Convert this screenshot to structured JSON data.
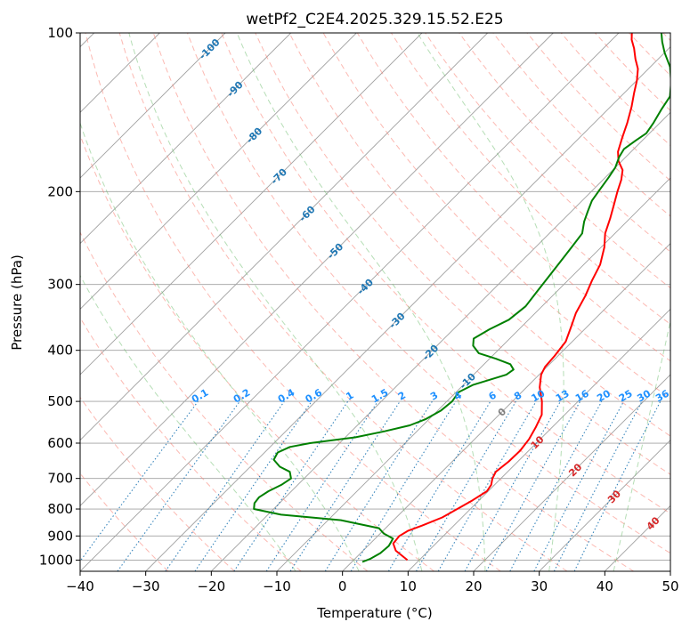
{
  "chart_data": {
    "type": "line",
    "title": "wetPf2_C2E4.2025.329.15.52.E25",
    "xlabel": "Temperature (°C)",
    "ylabel": "Pressure (hPa)",
    "xlim": [
      -40,
      50
    ],
    "ylim": [
      1050,
      100
    ],
    "y_scale": "log",
    "x_ticks": [
      -40,
      -30,
      -20,
      -10,
      0,
      10,
      20,
      30,
      40,
      50
    ],
    "y_ticks": [
      100,
      200,
      300,
      400,
      500,
      600,
      700,
      800,
      900,
      1000
    ],
    "grid": true,
    "series": [
      {
        "color": "#ff0000",
        "points": [
          [
            8.2,
            1000
          ],
          [
            5.0,
            960
          ],
          [
            3.5,
            930
          ],
          [
            3.3,
            900
          ],
          [
            3.8,
            880
          ],
          [
            5.2,
            860
          ],
          [
            7.0,
            830
          ],
          [
            8.0,
            800
          ],
          [
            9.0,
            770
          ],
          [
            9.8,
            740
          ],
          [
            9.5,
            720
          ],
          [
            8.7,
            700
          ],
          [
            8.2,
            680
          ],
          [
            8.6,
            650
          ],
          [
            8.7,
            620
          ],
          [
            8.3,
            590
          ],
          [
            7.5,
            560
          ],
          [
            6.5,
            530
          ],
          [
            4.5,
            500
          ],
          [
            2.0,
            470
          ],
          [
            0.3,
            445
          ],
          [
            -0.3,
            430
          ],
          [
            -0.5,
            410
          ],
          [
            -1.0,
            385
          ],
          [
            -2.5,
            360
          ],
          [
            -3.8,
            340
          ],
          [
            -5.0,
            315
          ],
          [
            -6.3,
            295
          ],
          [
            -7.5,
            275
          ],
          [
            -9.5,
            255
          ],
          [
            -11.5,
            240
          ],
          [
            -13.0,
            225
          ],
          [
            -14.5,
            212
          ],
          [
            -16.0,
            200
          ],
          [
            -17.2,
            190
          ],
          [
            -18.5,
            182
          ],
          [
            -20.5,
            175
          ],
          [
            -22.0,
            168
          ],
          [
            -23.5,
            158
          ],
          [
            -25.0,
            148
          ],
          [
            -26.8,
            138
          ],
          [
            -28.5,
            130
          ],
          [
            -30.0,
            123
          ],
          [
            -31.6,
            117
          ],
          [
            -33.5,
            112
          ],
          [
            -35.3,
            107
          ],
          [
            -37.0,
            103
          ],
          [
            -38.0,
            100
          ]
        ]
      },
      {
        "color": "#008000",
        "points": [
          [
            1.6,
            1008
          ],
          [
            2.3,
            995
          ],
          [
            3.0,
            970
          ],
          [
            3.2,
            940
          ],
          [
            2.7,
            910
          ],
          [
            0.5,
            890
          ],
          [
            -1.0,
            870
          ],
          [
            -8.0,
            840
          ],
          [
            -18.0,
            820
          ],
          [
            -23.0,
            800
          ],
          [
            -23.8,
            780
          ],
          [
            -24.0,
            760
          ],
          [
            -23.5,
            740
          ],
          [
            -22.5,
            720
          ],
          [
            -22.0,
            700
          ],
          [
            -23.2,
            680
          ],
          [
            -25.5,
            665
          ],
          [
            -27.5,
            645
          ],
          [
            -28.0,
            625
          ],
          [
            -27.0,
            610
          ],
          [
            -24.5,
            600
          ],
          [
            -18.5,
            585
          ],
          [
            -15.0,
            570
          ],
          [
            -12.0,
            555
          ],
          [
            -10.5,
            540
          ],
          [
            -9.5,
            520
          ],
          [
            -9.2,
            500
          ],
          [
            -9.6,
            480
          ],
          [
            -8.5,
            465
          ],
          [
            -5.0,
            445
          ],
          [
            -4.7,
            435
          ],
          [
            -6.0,
            425
          ],
          [
            -9.0,
            415
          ],
          [
            -12.5,
            405
          ],
          [
            -14.5,
            392
          ],
          [
            -15.5,
            380
          ],
          [
            -14.5,
            365
          ],
          [
            -13.0,
            350
          ],
          [
            -12.5,
            330
          ],
          [
            -13.0,
            310
          ],
          [
            -13.5,
            290
          ],
          [
            -14.0,
            272
          ],
          [
            -14.5,
            255
          ],
          [
            -15.0,
            240
          ],
          [
            -16.5,
            228
          ],
          [
            -17.5,
            218
          ],
          [
            -18.5,
            208
          ],
          [
            -19.0,
            198
          ],
          [
            -19.5,
            188
          ],
          [
            -20.0,
            180
          ],
          [
            -21.0,
            172
          ],
          [
            -21.5,
            166
          ],
          [
            -21.0,
            160
          ],
          [
            -20.5,
            155
          ],
          [
            -21.0,
            148
          ],
          [
            -21.8,
            140
          ],
          [
            -22.5,
            132
          ],
          [
            -24.5,
            124
          ],
          [
            -27.0,
            116
          ],
          [
            -30.0,
            109
          ],
          [
            -32.0,
            104
          ],
          [
            -33.5,
            100
          ]
        ]
      }
    ],
    "dry_adiabats_C": [
      -30,
      -20,
      -10,
      0,
      10,
      20,
      30,
      40,
      50,
      60,
      70,
      80,
      90,
      100,
      110,
      120,
      130,
      140,
      150,
      160,
      170,
      180,
      190,
      200
    ],
    "moist_adiabats_C": [
      -10,
      0,
      10,
      20,
      30,
      40,
      50
    ],
    "mixing_ratio_g_kg": [
      0.1,
      0.2,
      0.4,
      0.6,
      1,
      1.5,
      2,
      3,
      4,
      6,
      8,
      10,
      13,
      16,
      20,
      25,
      30,
      36
    ],
    "isotherm_labels_upper": [
      -100,
      -90,
      -80,
      -70,
      -60,
      -50,
      -40,
      -30,
      -20,
      -10
    ],
    "isotherm_labels_lower": [
      0,
      10,
      20,
      30,
      40
    ],
    "colors": {
      "temperature": "#ff0000",
      "dewpoint": "#008000",
      "isotherm": "#a0a0a0",
      "dry_adiabat": "#fa8072",
      "moist_adiabat": "#6dbd6d",
      "mixing_ratio": "#1f77b4",
      "mixing_label": "#1e90ff",
      "isotherm_label_cold": "#1f77b4",
      "isotherm_label_zero": "#808080",
      "isotherm_label_warm": "#d62728"
    }
  }
}
